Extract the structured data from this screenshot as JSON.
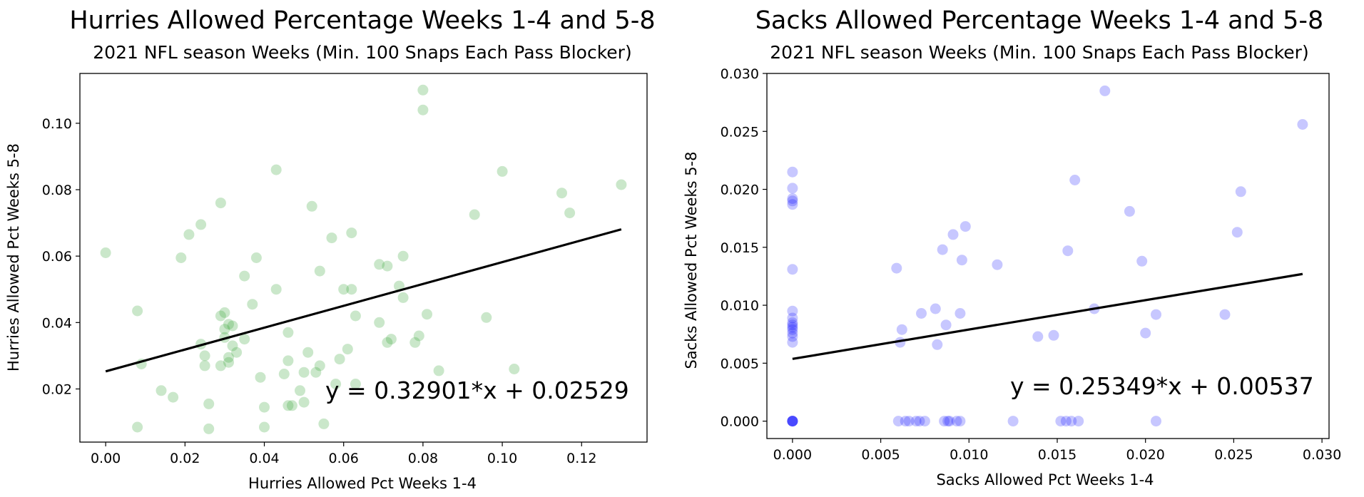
{
  "chart_data": [
    {
      "type": "scatter",
      "title": "Hurries Allowed Percentage Weeks 1-4 and 5-8",
      "subtitle": "2021 NFL season Weeks (Min. 100 Snaps Each Pass Blocker)",
      "xlabel": "Hurries Allowed Pct Weeks 1-4",
      "ylabel": "Hurries Allowed Pct Weeks 5-8",
      "xlim": [
        -0.0065,
        0.1365
      ],
      "ylim": [
        0.004,
        0.115
      ],
      "xticks": [
        "0.00",
        "0.02",
        "0.04",
        "0.06",
        "0.08",
        "0.10",
        "0.12"
      ],
      "yticks": [
        "0.02",
        "0.04",
        "0.06",
        "0.08",
        "0.10"
      ],
      "point_color": "#2ca02c",
      "grid": false,
      "fit_line": {
        "slope": 0.32901,
        "intercept": 0.02529,
        "x_range": [
          0.0,
          0.13
        ]
      },
      "equation": "y = 0.32901*x + 0.02529",
      "points": [
        [
          0.0,
          0.061
        ],
        [
          0.008,
          0.0085
        ],
        [
          0.008,
          0.0435
        ],
        [
          0.009,
          0.0275
        ],
        [
          0.014,
          0.0195
        ],
        [
          0.017,
          0.0175
        ],
        [
          0.019,
          0.0595
        ],
        [
          0.021,
          0.0665
        ],
        [
          0.024,
          0.0695
        ],
        [
          0.024,
          0.0335
        ],
        [
          0.025,
          0.027
        ],
        [
          0.025,
          0.03
        ],
        [
          0.026,
          0.0155
        ],
        [
          0.026,
          0.008
        ],
        [
          0.029,
          0.076
        ],
        [
          0.029,
          0.042
        ],
        [
          0.029,
          0.027
        ],
        [
          0.03,
          0.043
        ],
        [
          0.03,
          0.038
        ],
        [
          0.03,
          0.0355
        ],
        [
          0.031,
          0.0395
        ],
        [
          0.031,
          0.0295
        ],
        [
          0.031,
          0.028
        ],
        [
          0.032,
          0.039
        ],
        [
          0.032,
          0.033
        ],
        [
          0.033,
          0.031
        ],
        [
          0.035,
          0.054
        ],
        [
          0.035,
          0.035
        ],
        [
          0.037,
          0.0455
        ],
        [
          0.038,
          0.0595
        ],
        [
          0.039,
          0.0235
        ],
        [
          0.04,
          0.0145
        ],
        [
          0.04,
          0.0085
        ],
        [
          0.043,
          0.086
        ],
        [
          0.043,
          0.05
        ],
        [
          0.045,
          0.0245
        ],
        [
          0.046,
          0.0285
        ],
        [
          0.046,
          0.015
        ],
        [
          0.046,
          0.037
        ],
        [
          0.047,
          0.015
        ],
        [
          0.049,
          0.0195
        ],
        [
          0.05,
          0.025
        ],
        [
          0.05,
          0.016
        ],
        [
          0.051,
          0.031
        ],
        [
          0.052,
          0.075
        ],
        [
          0.053,
          0.025
        ],
        [
          0.054,
          0.027
        ],
        [
          0.054,
          0.0555
        ],
        [
          0.055,
          0.0095
        ],
        [
          0.057,
          0.0655
        ],
        [
          0.058,
          0.0215
        ],
        [
          0.059,
          0.029
        ],
        [
          0.06,
          0.05
        ],
        [
          0.061,
          0.032
        ],
        [
          0.062,
          0.067
        ],
        [
          0.062,
          0.05
        ],
        [
          0.063,
          0.042
        ],
        [
          0.063,
          0.0215
        ],
        [
          0.069,
          0.04
        ],
        [
          0.069,
          0.0575
        ],
        [
          0.071,
          0.057
        ],
        [
          0.071,
          0.034
        ],
        [
          0.072,
          0.035
        ],
        [
          0.074,
          0.051
        ],
        [
          0.075,
          0.06
        ],
        [
          0.075,
          0.0475
        ],
        [
          0.078,
          0.034
        ],
        [
          0.079,
          0.036
        ],
        [
          0.08,
          0.11
        ],
        [
          0.08,
          0.104
        ],
        [
          0.081,
          0.0425
        ],
        [
          0.084,
          0.0255
        ],
        [
          0.093,
          0.0725
        ],
        [
          0.096,
          0.0415
        ],
        [
          0.1,
          0.0855
        ],
        [
          0.103,
          0.026
        ],
        [
          0.115,
          0.079
        ],
        [
          0.117,
          0.073
        ],
        [
          0.13,
          0.0815
        ]
      ]
    },
    {
      "type": "scatter",
      "title": "Sacks Allowed Percentage Weeks 1-4 and 5-8",
      "subtitle": "2021 NFL season Weeks (Min. 100 Snaps Each Pass Blocker)",
      "xlabel": "Sacks Allowed Pct Weeks 1-4",
      "ylabel": "Sacks Allowed Pct Weeks 5-8",
      "xlim": [
        -0.00145,
        0.0304
      ],
      "ylim": [
        -0.0015,
        0.03
      ],
      "xticks": [
        "0.000",
        "0.005",
        "0.010",
        "0.015",
        "0.020",
        "0.025",
        "0.030"
      ],
      "yticks": [
        "0.000",
        "0.005",
        "0.010",
        "0.015",
        "0.020",
        "0.025",
        "0.030"
      ],
      "point_color": "#0000ff",
      "grid": false,
      "fit_line": {
        "slope": 0.25349,
        "intercept": 0.00537,
        "x_range": [
          0.0,
          0.0289
        ]
      },
      "equation": "y = 0.25349*x + 0.00537",
      "points": [
        [
          0.0,
          0.0215
        ],
        [
          0.0,
          0.0201
        ],
        [
          0.0,
          0.0192
        ],
        [
          0.0,
          0.019
        ],
        [
          0.0,
          0.0187
        ],
        [
          0.0,
          0.0131
        ],
        [
          0.0,
          0.0095
        ],
        [
          0.0,
          0.0089
        ],
        [
          0.0,
          0.0085
        ],
        [
          0.0,
          0.0083
        ],
        [
          0.0,
          0.0081
        ],
        [
          0.0,
          0.0079
        ],
        [
          0.0,
          0.0076
        ],
        [
          0.0,
          0.0073
        ],
        [
          0.0,
          0.0068
        ],
        [
          0.0,
          0.0
        ],
        [
          0.0,
          0.0
        ],
        [
          0.0,
          0.0
        ],
        [
          0.0,
          0.0
        ],
        [
          0.0,
          0.0
        ],
        [
          0.0059,
          0.0132
        ],
        [
          0.006,
          0.0
        ],
        [
          0.0061,
          0.0068
        ],
        [
          0.0062,
          0.0079
        ],
        [
          0.0064,
          0.0
        ],
        [
          0.0066,
          0.0
        ],
        [
          0.007,
          0.0
        ],
        [
          0.0072,
          0.0
        ],
        [
          0.0073,
          0.0093
        ],
        [
          0.0075,
          0.0
        ],
        [
          0.0081,
          0.0097
        ],
        [
          0.0082,
          0.0066
        ],
        [
          0.0085,
          0.0148
        ],
        [
          0.0086,
          0.0
        ],
        [
          0.0087,
          0.0083
        ],
        [
          0.0088,
          0.0
        ],
        [
          0.0089,
          0.0
        ],
        [
          0.0091,
          0.0161
        ],
        [
          0.0093,
          0.0
        ],
        [
          0.0095,
          0.0093
        ],
        [
          0.0095,
          0.0
        ],
        [
          0.0096,
          0.0139
        ],
        [
          0.0098,
          0.0168
        ],
        [
          0.0116,
          0.0135
        ],
        [
          0.0125,
          0.0
        ],
        [
          0.0139,
          0.0073
        ],
        [
          0.0148,
          0.0074
        ],
        [
          0.0152,
          0.0
        ],
        [
          0.0155,
          0.0
        ],
        [
          0.0156,
          0.0147
        ],
        [
          0.0158,
          0.0
        ],
        [
          0.016,
          0.0208
        ],
        [
          0.0162,
          0.0
        ],
        [
          0.0171,
          0.0097
        ],
        [
          0.0177,
          0.0285
        ],
        [
          0.0191,
          0.0181
        ],
        [
          0.0198,
          0.0138
        ],
        [
          0.02,
          0.0076
        ],
        [
          0.0206,
          0.0092
        ],
        [
          0.0206,
          0.0
        ],
        [
          0.0245,
          0.0092
        ],
        [
          0.0252,
          0.0163
        ],
        [
          0.0254,
          0.0198
        ],
        [
          0.0289,
          0.0256
        ]
      ]
    }
  ]
}
